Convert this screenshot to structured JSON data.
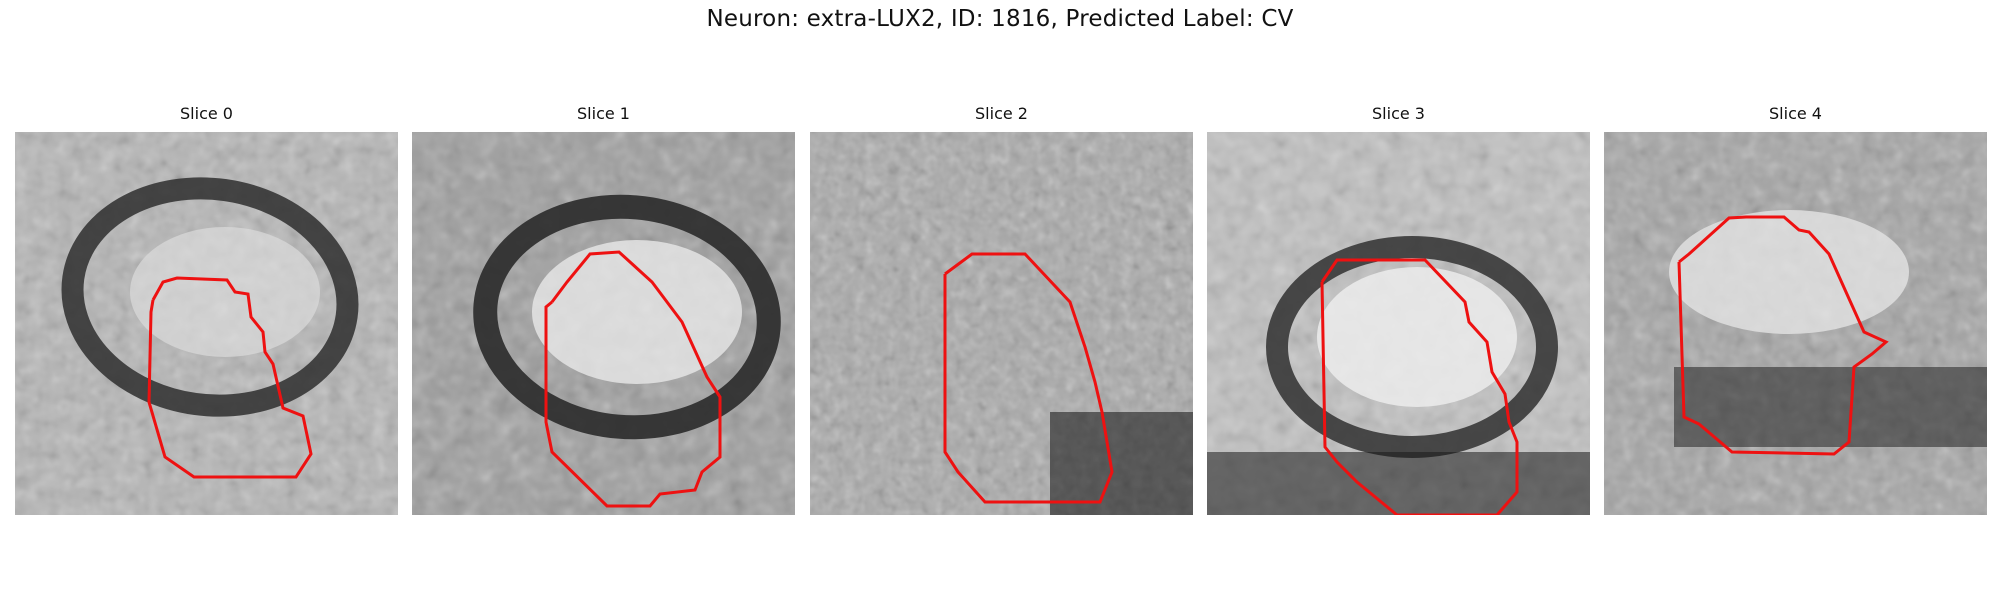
{
  "figure": {
    "title": "Neuron: extra-LUX2, ID: 1816, Predicted Label: CV"
  },
  "panels": [
    {
      "title": "Slice 0"
    },
    {
      "title": "Slice 1"
    },
    {
      "title": "Slice 2"
    },
    {
      "title": "Slice 3"
    },
    {
      "title": "Slice 4"
    }
  ],
  "colors": {
    "contour": "#ee1111",
    "colormap": "grayscale"
  }
}
